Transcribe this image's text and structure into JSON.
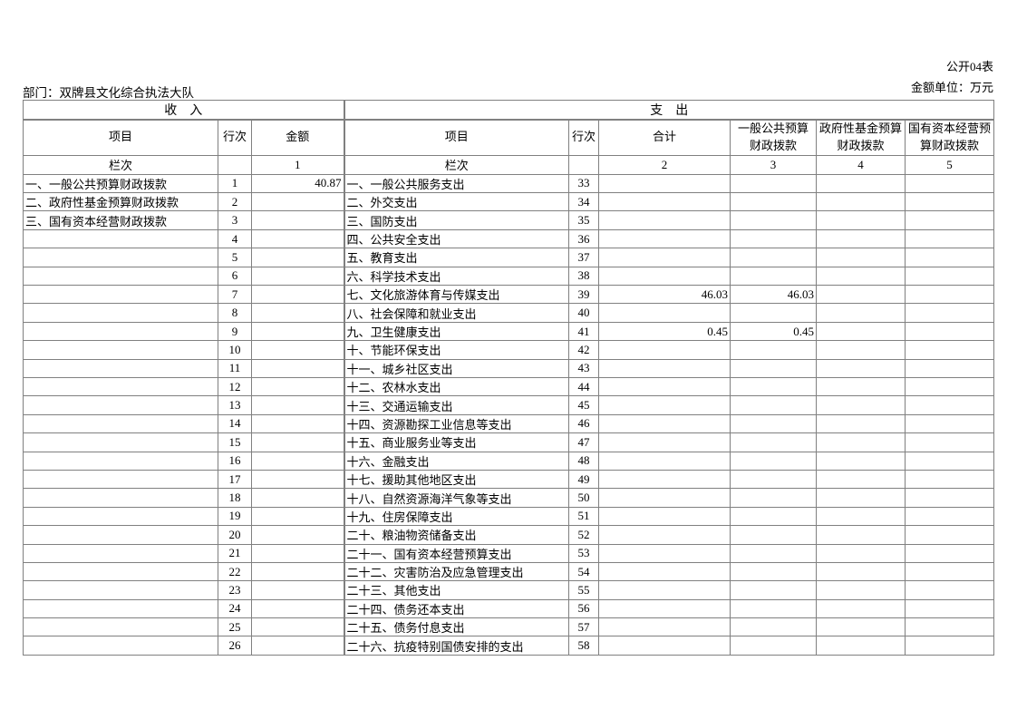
{
  "page": {
    "form_code": "公开04表",
    "unit_note": "金额单位：万元",
    "department": "部门：双牌县文化综合执法大队"
  },
  "table": {
    "income_banner": "收　入",
    "expense_banner": "支　出",
    "headers": {
      "item": "项目",
      "line": "行次",
      "amount": "金额",
      "total": "合计",
      "general": "一般公共预算财政拨款",
      "gov_fund": "政府性基金预算财政拨款",
      "state_capital": "国有资本经营预算财政拨款"
    },
    "lanci": {
      "label": "栏次",
      "col1": "1",
      "col2": "2",
      "col3": "3",
      "col4": "4",
      "col5": "5"
    },
    "rows": [
      {
        "income_item": "一、一般公共预算财政拨款",
        "income_line": "1",
        "income_amount": "40.87",
        "exp_item": "一、一般公共服务支出",
        "exp_line": "33",
        "exp_total": "",
        "exp_general": "",
        "exp_gov_fund": "",
        "exp_state_capital": ""
      },
      {
        "income_item": "二、政府性基金预算财政拨款",
        "income_line": "2",
        "income_amount": "",
        "exp_item": "二、外交支出",
        "exp_line": "34",
        "exp_total": "",
        "exp_general": "",
        "exp_gov_fund": "",
        "exp_state_capital": ""
      },
      {
        "income_item": "三、国有资本经营财政拨款",
        "income_line": "3",
        "income_amount": "",
        "exp_item": "三、国防支出",
        "exp_line": "35",
        "exp_total": "",
        "exp_general": "",
        "exp_gov_fund": "",
        "exp_state_capital": ""
      },
      {
        "income_item": "",
        "income_line": "4",
        "income_amount": "",
        "exp_item": "四、公共安全支出",
        "exp_line": "36",
        "exp_total": "",
        "exp_general": "",
        "exp_gov_fund": "",
        "exp_state_capital": ""
      },
      {
        "income_item": "",
        "income_line": "5",
        "income_amount": "",
        "exp_item": "五、教育支出",
        "exp_line": "37",
        "exp_total": "",
        "exp_general": "",
        "exp_gov_fund": "",
        "exp_state_capital": ""
      },
      {
        "income_item": "",
        "income_line": "6",
        "income_amount": "",
        "exp_item": "六、科学技术支出",
        "exp_line": "38",
        "exp_total": "",
        "exp_general": "",
        "exp_gov_fund": "",
        "exp_state_capital": ""
      },
      {
        "income_item": "",
        "income_line": "7",
        "income_amount": "",
        "exp_item": "七、文化旅游体育与传媒支出",
        "exp_line": "39",
        "exp_total": "46.03",
        "exp_general": "46.03",
        "exp_gov_fund": "",
        "exp_state_capital": ""
      },
      {
        "income_item": "",
        "income_line": "8",
        "income_amount": "",
        "exp_item": "八、社会保障和就业支出",
        "exp_line": "40",
        "exp_total": "",
        "exp_general": "",
        "exp_gov_fund": "",
        "exp_state_capital": ""
      },
      {
        "income_item": "",
        "income_line": "9",
        "income_amount": "",
        "exp_item": "九、卫生健康支出",
        "exp_line": "41",
        "exp_total": "0.45",
        "exp_general": "0.45",
        "exp_gov_fund": "",
        "exp_state_capital": ""
      },
      {
        "income_item": "",
        "income_line": "10",
        "income_amount": "",
        "exp_item": "十、节能环保支出",
        "exp_line": "42",
        "exp_total": "",
        "exp_general": "",
        "exp_gov_fund": "",
        "exp_state_capital": ""
      },
      {
        "income_item": "",
        "income_line": "11",
        "income_amount": "",
        "exp_item": "十一、城乡社区支出",
        "exp_line": "43",
        "exp_total": "",
        "exp_general": "",
        "exp_gov_fund": "",
        "exp_state_capital": ""
      },
      {
        "income_item": "",
        "income_line": "12",
        "income_amount": "",
        "exp_item": "十二、农林水支出",
        "exp_line": "44",
        "exp_total": "",
        "exp_general": "",
        "exp_gov_fund": "",
        "exp_state_capital": ""
      },
      {
        "income_item": "",
        "income_line": "13",
        "income_amount": "",
        "exp_item": "十三、交通运输支出",
        "exp_line": "45",
        "exp_total": "",
        "exp_general": "",
        "exp_gov_fund": "",
        "exp_state_capital": ""
      },
      {
        "income_item": "",
        "income_line": "14",
        "income_amount": "",
        "exp_item": "十四、资源勘探工业信息等支出",
        "exp_line": "46",
        "exp_total": "",
        "exp_general": "",
        "exp_gov_fund": "",
        "exp_state_capital": ""
      },
      {
        "income_item": "",
        "income_line": "15",
        "income_amount": "",
        "exp_item": "十五、商业服务业等支出",
        "exp_line": "47",
        "exp_total": "",
        "exp_general": "",
        "exp_gov_fund": "",
        "exp_state_capital": ""
      },
      {
        "income_item": "",
        "income_line": "16",
        "income_amount": "",
        "exp_item": "十六、金融支出",
        "exp_line": "48",
        "exp_total": "",
        "exp_general": "",
        "exp_gov_fund": "",
        "exp_state_capital": ""
      },
      {
        "income_item": "",
        "income_line": "17",
        "income_amount": "",
        "exp_item": "十七、援助其他地区支出",
        "exp_line": "49",
        "exp_total": "",
        "exp_general": "",
        "exp_gov_fund": "",
        "exp_state_capital": ""
      },
      {
        "income_item": "",
        "income_line": "18",
        "income_amount": "",
        "exp_item": "十八、自然资源海洋气象等支出",
        "exp_line": "50",
        "exp_total": "",
        "exp_general": "",
        "exp_gov_fund": "",
        "exp_state_capital": ""
      },
      {
        "income_item": "",
        "income_line": "19",
        "income_amount": "",
        "exp_item": "十九、住房保障支出",
        "exp_line": "51",
        "exp_total": "",
        "exp_general": "",
        "exp_gov_fund": "",
        "exp_state_capital": ""
      },
      {
        "income_item": "",
        "income_line": "20",
        "income_amount": "",
        "exp_item": "二十、粮油物资储备支出",
        "exp_line": "52",
        "exp_total": "",
        "exp_general": "",
        "exp_gov_fund": "",
        "exp_state_capital": ""
      },
      {
        "income_item": "",
        "income_line": "21",
        "income_amount": "",
        "exp_item": "二十一、国有资本经营预算支出",
        "exp_line": "53",
        "exp_total": "",
        "exp_general": "",
        "exp_gov_fund": "",
        "exp_state_capital": ""
      },
      {
        "income_item": "",
        "income_line": "22",
        "income_amount": "",
        "exp_item": "二十二、灾害防治及应急管理支出",
        "exp_line": "54",
        "exp_total": "",
        "exp_general": "",
        "exp_gov_fund": "",
        "exp_state_capital": ""
      },
      {
        "income_item": "",
        "income_line": "23",
        "income_amount": "",
        "exp_item": "二十三、其他支出",
        "exp_line": "55",
        "exp_total": "",
        "exp_general": "",
        "exp_gov_fund": "",
        "exp_state_capital": ""
      },
      {
        "income_item": "",
        "income_line": "24",
        "income_amount": "",
        "exp_item": "二十四、债务还本支出",
        "exp_line": "56",
        "exp_total": "",
        "exp_general": "",
        "exp_gov_fund": "",
        "exp_state_capital": ""
      },
      {
        "income_item": "",
        "income_line": "25",
        "income_amount": "",
        "exp_item": "二十五、债务付息支出",
        "exp_line": "57",
        "exp_total": "",
        "exp_general": "",
        "exp_gov_fund": "",
        "exp_state_capital": ""
      },
      {
        "income_item": "",
        "income_line": "26",
        "income_amount": "",
        "exp_item": "二十六、抗疫特别国债安排的支出",
        "exp_line": "58",
        "exp_total": "",
        "exp_general": "",
        "exp_gov_fund": "",
        "exp_state_capital": ""
      }
    ]
  }
}
